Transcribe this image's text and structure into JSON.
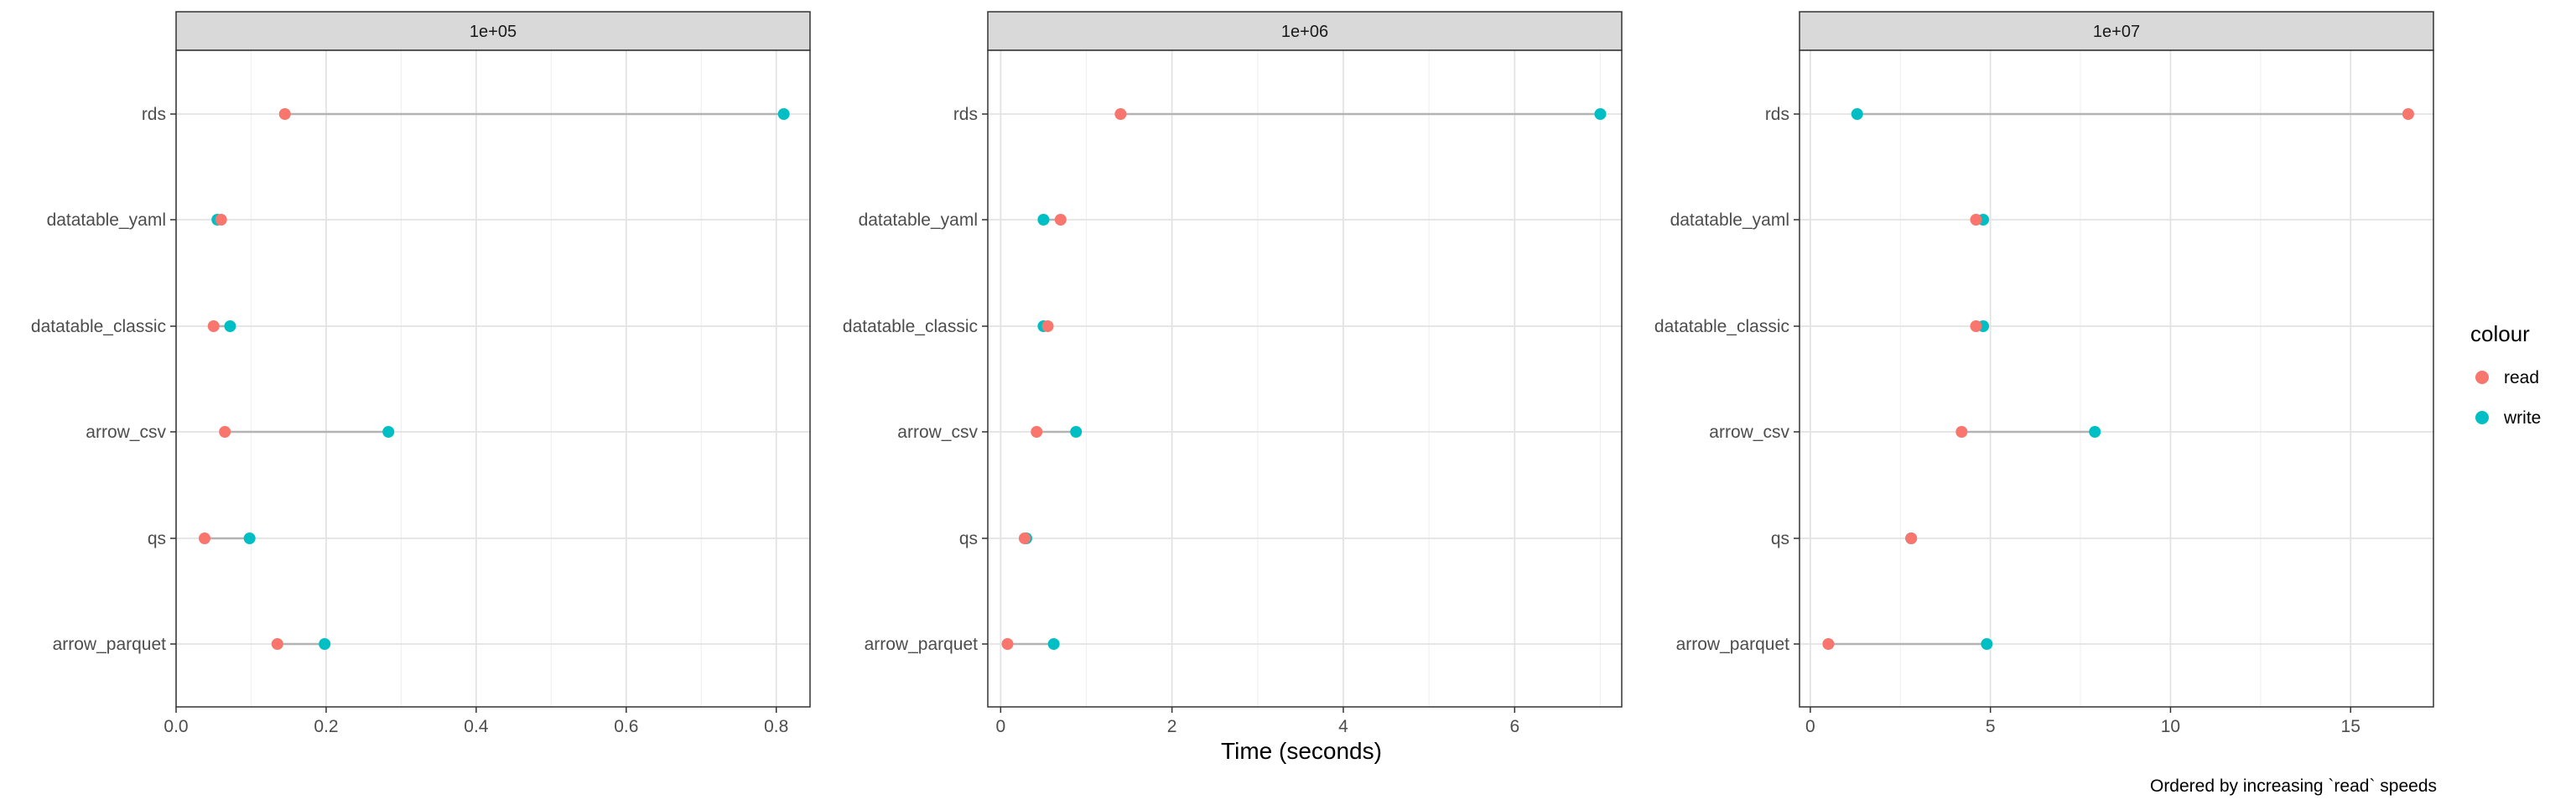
{
  "chart_data": {
    "type": "scatter",
    "style": "dumbbell",
    "xlabel": "Time (seconds)",
    "caption": "Ordered by increasing `read` speeds",
    "categories": [
      "rds",
      "datatable_yaml",
      "datatable_classic",
      "arrow_csv",
      "qs",
      "arrow_parquet"
    ],
    "legend": {
      "title": "colour",
      "placement": "right",
      "entries": [
        {
          "label": "read",
          "color": "#F8766D"
        },
        {
          "label": "write",
          "color": "#00BFC4"
        }
      ]
    },
    "grid": true,
    "panels": [
      {
        "strip": "1e+05",
        "xlim": [
          0,
          0.845
        ],
        "xticks": [
          0.0,
          0.2,
          0.4,
          0.6,
          0.8
        ],
        "xtick_labels": [
          "0.0",
          "0.2",
          "0.4",
          "0.6",
          "0.8"
        ],
        "read": [
          0.145,
          0.06,
          0.05,
          0.065,
          0.038,
          0.135
        ],
        "write": [
          0.81,
          0.055,
          0.072,
          0.283,
          0.098,
          0.198
        ]
      },
      {
        "strip": "1e+06",
        "xlim": [
          -0.15,
          7.25
        ],
        "xticks": [
          0,
          2,
          4,
          6
        ],
        "xtick_labels": [
          "0",
          "2",
          "4",
          "6"
        ],
        "read": [
          1.4,
          0.7,
          0.55,
          0.42,
          0.28,
          0.08
        ],
        "write": [
          7.0,
          0.5,
          0.5,
          0.88,
          0.3,
          0.62
        ]
      },
      {
        "strip": "1e+07",
        "xlim": [
          -0.3,
          17.3
        ],
        "xticks": [
          0,
          5,
          10,
          15
        ],
        "xtick_labels": [
          "0",
          "5",
          "10",
          "15"
        ],
        "read": [
          16.6,
          4.6,
          4.6,
          4.2,
          2.8,
          0.5
        ],
        "write": [
          1.3,
          4.8,
          4.8,
          7.9,
          2.8,
          4.9
        ]
      }
    ]
  }
}
